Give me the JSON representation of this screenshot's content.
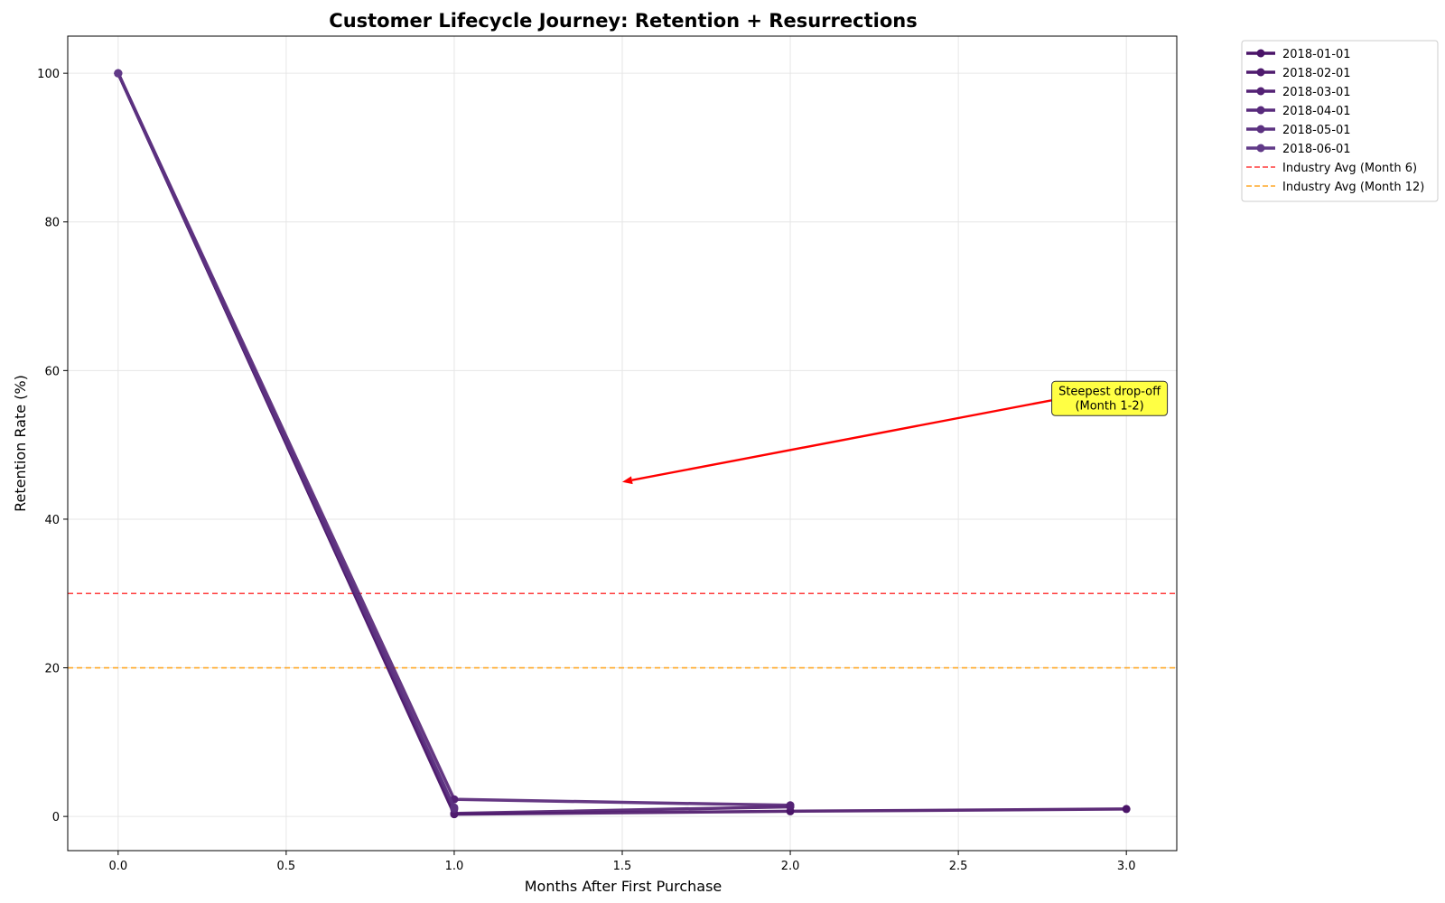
{
  "chart_data": {
    "type": "line",
    "title": "Customer Lifecycle Journey: Retention + Resurrections",
    "xlabel": "Months After First Purchase",
    "ylabel": "Retention Rate (%)",
    "xlim": [
      -0.15,
      3.15
    ],
    "ylim": [
      -4.6,
      105
    ],
    "xticks": [
      0.0,
      0.5,
      1.0,
      1.5,
      2.0,
      2.5,
      3.0
    ],
    "xtick_labels": [
      "0.0",
      "0.5",
      "1.0",
      "1.5",
      "2.0",
      "2.5",
      "3.0"
    ],
    "yticks": [
      0,
      20,
      40,
      60,
      80,
      100
    ],
    "ytick_labels": [
      "0",
      "20",
      "40",
      "60",
      "80",
      "100"
    ],
    "grid": true,
    "legend_position": "outside-top-right",
    "series": [
      {
        "name": "2018-01-01",
        "color": "#4a1468",
        "x": [
          0,
          1,
          2,
          3
        ],
        "y": [
          100,
          0.3,
          0.7,
          1.0
        ]
      },
      {
        "name": "2018-02-01",
        "color": "#4f1b6e",
        "x": [
          0,
          1,
          2
        ],
        "y": [
          100,
          0.4,
          1.3
        ]
      },
      {
        "name": "2018-03-01",
        "color": "#542275",
        "x": [
          0,
          1,
          2
        ],
        "y": [
          100,
          2.3,
          1.5
        ]
      },
      {
        "name": "2018-04-01",
        "color": "#582a7c",
        "x": [
          0,
          1
        ],
        "y": [
          100,
          1.0
        ]
      },
      {
        "name": "2018-05-01",
        "color": "#5c3281",
        "x": [
          0,
          1
        ],
        "y": [
          100,
          1.2
        ]
      },
      {
        "name": "2018-06-01",
        "color": "#613a88",
        "x": [
          0
        ],
        "y": [
          100
        ]
      }
    ],
    "reference_lines": [
      {
        "name": "Industry Avg (Month 6)",
        "y": 30,
        "color": "#ff3b3b",
        "style": "dashed"
      },
      {
        "name": "Industry Avg (Month 12)",
        "y": 20,
        "color": "#ffa726",
        "style": "dashed"
      }
    ],
    "annotation": {
      "text_line1": "Steepest drop-off",
      "text_line2": "(Month 1-2)",
      "text_x": 2.95,
      "text_y": 56,
      "arrow_to_x": 1.5,
      "arrow_to_y": 45,
      "box_color": "#ffff44",
      "arrow_color": "#ff0000"
    }
  }
}
